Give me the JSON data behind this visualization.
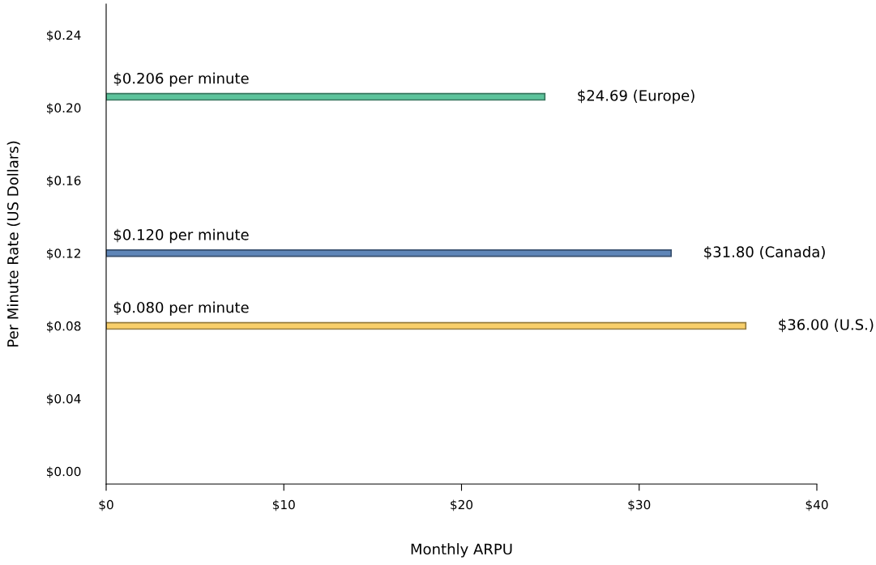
{
  "chart_data": {
    "type": "bar",
    "orientation": "horizontal",
    "xlabel": "Monthly ARPU",
    "ylabel": "Per Minute Rate (US Dollars)",
    "x": [
      0.206,
      0.12,
      0.08
    ],
    "values": [
      24.69,
      31.8,
      36.0
    ],
    "colors": [
      "#5cc39b",
      "#5f86b8",
      "#f8cf6a"
    ],
    "value_labels": [
      "$24.69 (Europe)",
      "$31.80 (Canada)",
      "$36.00 (U.S.)"
    ],
    "annotations": [
      {
        "text": "$0.206 per minute",
        "y": 0.206
      },
      {
        "text": "$0.120 per minute",
        "y": 0.12
      },
      {
        "text": "$0.080 per minute",
        "y": 0.08
      }
    ],
    "xlim": [
      0,
      40
    ],
    "xticks": [
      {
        "value": 0,
        "label": "$0"
      },
      {
        "value": 10,
        "label": "$10"
      },
      {
        "value": 20,
        "label": "$20"
      },
      {
        "value": 30,
        "label": "$30"
      },
      {
        "value": 40,
        "label": "$40"
      }
    ],
    "ylim": [
      -0.007,
      0.257
    ],
    "yticks": [
      {
        "value": 0,
        "label": "$0.00"
      },
      {
        "value": 0.04,
        "label": "$0.04"
      },
      {
        "value": 0.08,
        "label": "$0.08"
      },
      {
        "value": 0.12,
        "label": "$0.12"
      },
      {
        "value": 0.16,
        "label": "$0.16"
      },
      {
        "value": 0.2,
        "label": "$0.20"
      },
      {
        "value": 0.24,
        "label": "$0.24"
      }
    ],
    "grid": false
  }
}
